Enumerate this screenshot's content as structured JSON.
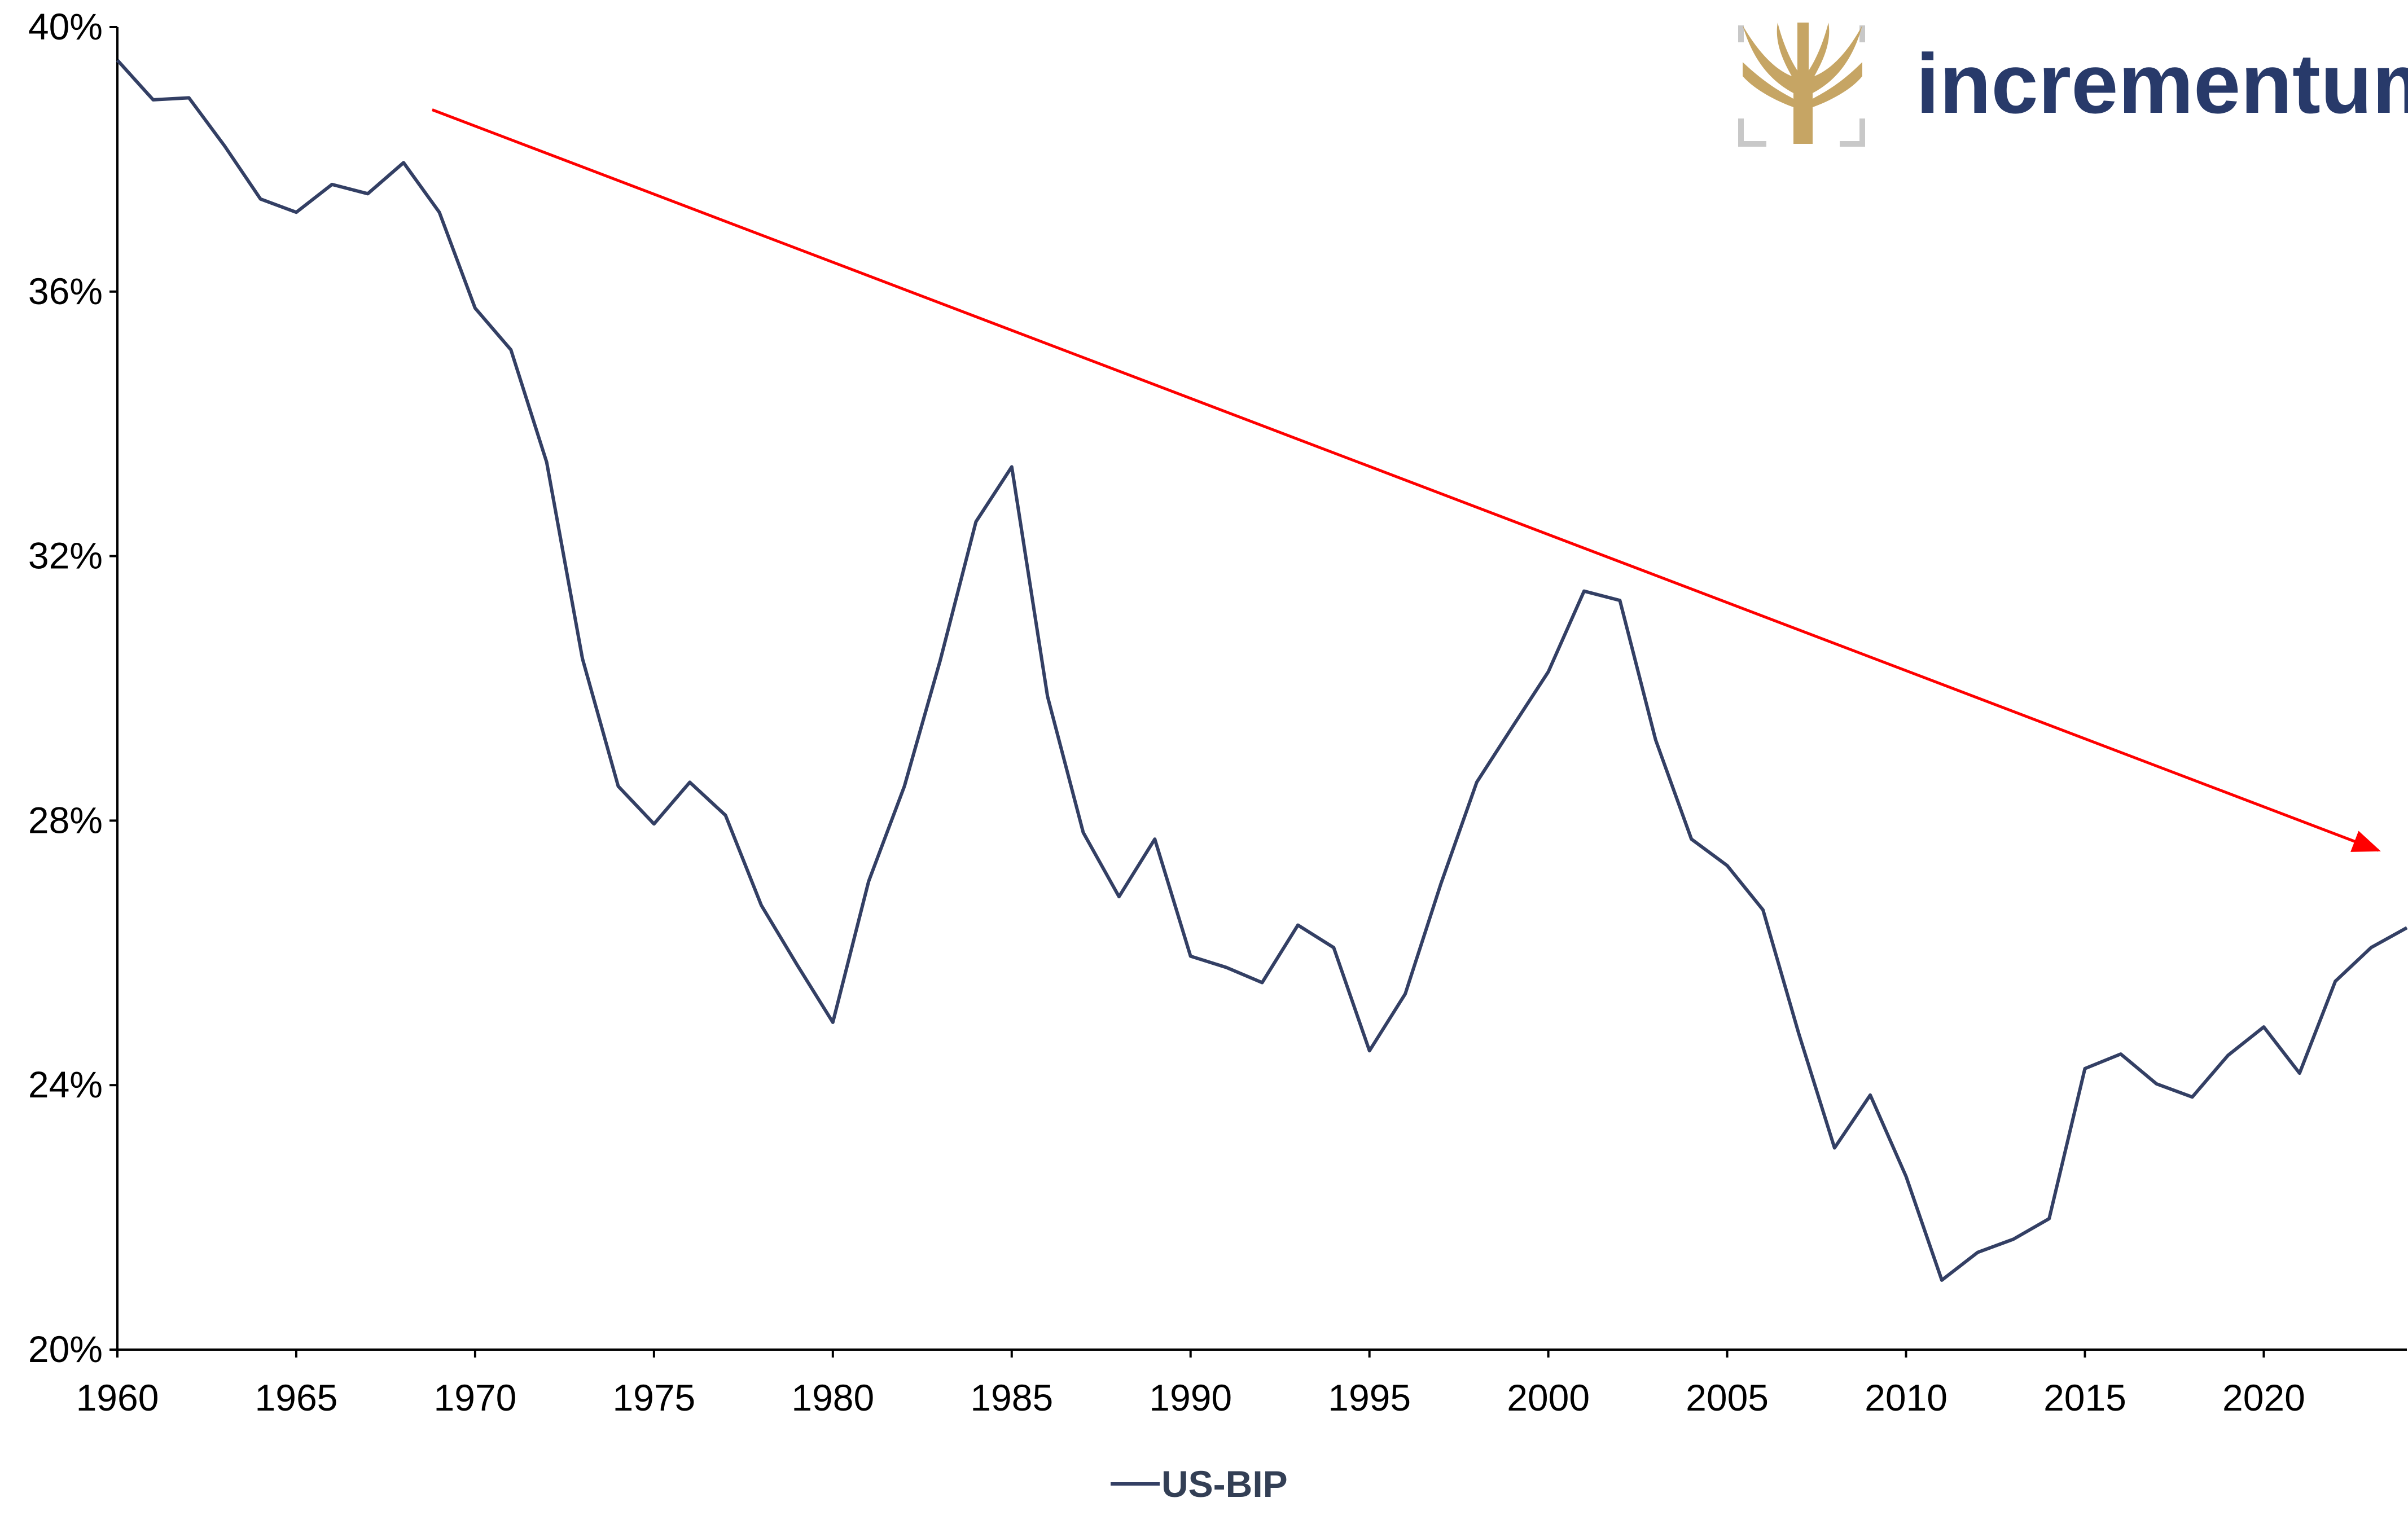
{
  "logo": {
    "text": "incrementum",
    "text_color": "#283a6a",
    "tree_color": "#c6a564",
    "frame_color": "#c8c8c8"
  },
  "chart_data": {
    "type": "line",
    "title": "",
    "xlabel": "",
    "ylabel": "",
    "xlim": [
      1960,
      2024
    ],
    "ylim": [
      0.2,
      0.4
    ],
    "grid": false,
    "legend_position": "bottom-center",
    "x_ticks": [
      "1960",
      "1965",
      "1970",
      "1975",
      "1980",
      "1985",
      "1990",
      "1995",
      "2000",
      "2005",
      "2010",
      "2015",
      "2020"
    ],
    "y_ticks": [
      "20%",
      "24%",
      "28%",
      "32%",
      "36%",
      "40%"
    ],
    "series": [
      {
        "name": "US-BIP",
        "color": "#333f64",
        "x": [
          1960,
          1961,
          1962,
          1963,
          1964,
          1965,
          1966,
          1967,
          1968,
          1969,
          1970,
          1971,
          1972,
          1973,
          1974,
          1975,
          1976,
          1977,
          1978,
          1979,
          1980,
          1981,
          1982,
          1983,
          1984,
          1985,
          1986,
          1987,
          1988,
          1989,
          1990,
          1991,
          1992,
          1993,
          1994,
          1995,
          1996,
          1997,
          1998,
          1999,
          2000,
          2001,
          2002,
          2003,
          2004,
          2005,
          2006,
          2007,
          2008,
          2009,
          2010,
          2011,
          2012,
          2013,
          2014,
          2015,
          2016,
          2017,
          2018,
          2019,
          2020,
          2021,
          2022,
          2023,
          2024
        ],
        "y": [
          0.395,
          0.389,
          0.3893,
          0.382,
          0.374,
          0.372,
          0.3762,
          0.3748,
          0.3795,
          0.372,
          0.3575,
          0.3512,
          0.3342,
          0.3045,
          0.2852,
          0.2795,
          0.2858,
          0.2808,
          0.2672,
          0.2582,
          0.2495,
          0.2708,
          0.2852,
          0.3042,
          0.3252,
          0.3335,
          0.2988,
          0.2782,
          0.2685,
          0.2772,
          0.2595,
          0.2578,
          0.2555,
          0.2642,
          0.2608,
          0.2452,
          0.2538,
          0.2705,
          0.2858,
          0.2942,
          0.3025,
          0.3147,
          0.3133,
          0.2922,
          0.2772,
          0.2732,
          0.2665,
          0.2478,
          0.2305,
          0.2385,
          0.2262,
          0.2105,
          0.2147,
          0.2167,
          0.2198,
          0.2425,
          0.2447,
          0.2402,
          0.2382,
          0.2445,
          0.2488,
          0.2418,
          0.2557,
          0.2608,
          0.2638
        ]
      }
    ],
    "annotations": [
      {
        "type": "trend-arrow",
        "color": "#ff0000",
        "from": [
          1968.8,
          0.3875
        ],
        "to": [
          2023.2,
          0.2755
        ]
      }
    ]
  }
}
